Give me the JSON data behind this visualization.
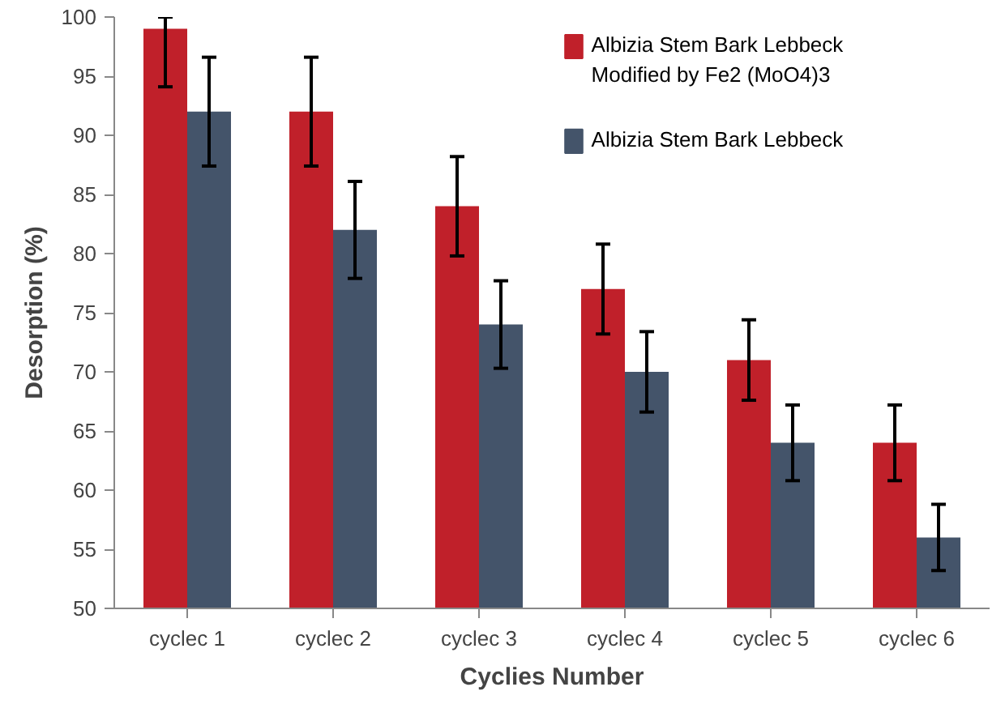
{
  "chart_data": {
    "type": "bar",
    "xlabel": "Cyclies Number",
    "ylabel": "Desorption (%)",
    "categories": [
      "cyclec 1",
      "cyclec 2",
      "cyclec 3",
      "cyclec 4",
      "cyclec 5",
      "cyclec 6"
    ],
    "series": [
      {
        "name": "Albizia Stem Bark Lebbeck Modified by Fe2 (MoO4)3",
        "color": "#c0202a",
        "values": [
          99,
          92,
          84,
          77,
          71,
          64
        ],
        "errors": [
          [
            94.1,
            100
          ],
          4.6,
          4.2,
          3.8,
          3.4,
          3.2
        ]
      },
      {
        "name": "Albizia Stem Bark Lebbeck",
        "color": "#44546a",
        "values": [
          92,
          82,
          74,
          70,
          64,
          56
        ],
        "errors": [
          4.6,
          4.1,
          3.7,
          3.4,
          3.2,
          2.8
        ]
      }
    ],
    "ylim": [
      50,
      100
    ],
    "yticks": [
      50,
      55,
      60,
      65,
      70,
      75,
      80,
      85,
      90,
      95,
      100
    ],
    "grid": false,
    "legend": "top right"
  }
}
